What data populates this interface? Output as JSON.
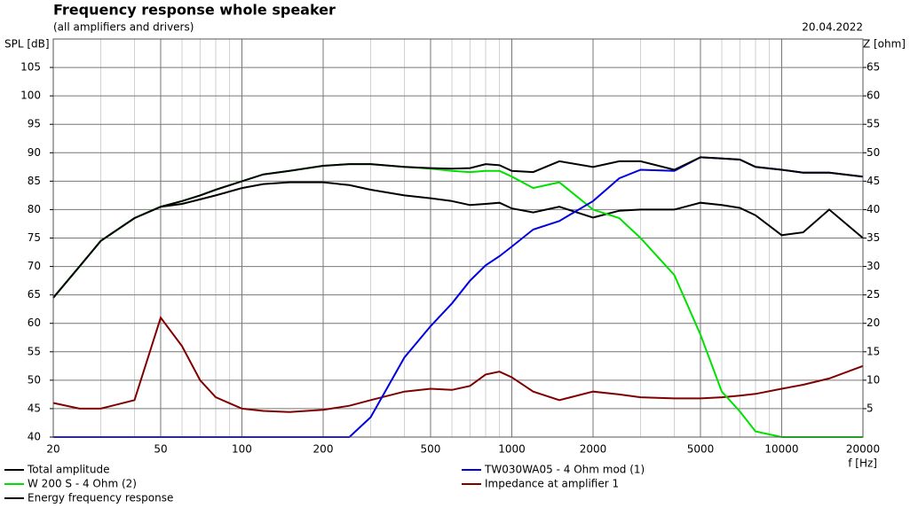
{
  "chart_data": {
    "type": "line",
    "title": "Frequency response whole speaker",
    "subtitle": "(all amplifiers and drivers)",
    "date": "20.04.2022",
    "y_label": "SPL [dB]",
    "y2_label": "Z [ohm]",
    "x_label": "f [Hz]",
    "x_log": true,
    "grid": true,
    "x": [
      20,
      25,
      30,
      40,
      50,
      60,
      70,
      80,
      100,
      120,
      150,
      200,
      250,
      300,
      400,
      500,
      600,
      700,
      800,
      900,
      1000,
      1200,
      1500,
      2000,
      2500,
      3000,
      4000,
      5000,
      6000,
      7000,
      8000,
      10000,
      12000,
      15000,
      20000
    ],
    "xlim": [
      20,
      20000
    ],
    "xticks": [
      20,
      50,
      100,
      200,
      500,
      1000,
      2000,
      5000,
      10000,
      20000
    ],
    "ylim": [
      40,
      110
    ],
    "yticks": [
      40,
      45,
      50,
      55,
      60,
      65,
      70,
      75,
      80,
      85,
      90,
      95,
      100,
      105
    ],
    "y2lim": [
      0,
      70
    ],
    "y2ticks": [
      5,
      10,
      15,
      20,
      25,
      30,
      35,
      40,
      45,
      50,
      55,
      60,
      65
    ],
    "series": [
      {
        "name": "Total amplitude",
        "color": "#000000",
        "values": [
          64.5,
          70,
          74.5,
          78.5,
          80.5,
          81.5,
          82.5,
          83.5,
          85,
          86.2,
          86.8,
          87.7,
          88,
          88,
          87.5,
          87.3,
          87.2,
          87.3,
          88,
          87.8,
          86.8,
          86.6,
          88.5,
          87.5,
          88.5,
          88.5,
          87,
          89.2,
          89,
          88.8,
          87.5,
          87,
          86.5,
          86.5,
          85.8
        ]
      },
      {
        "name": "W 200 S - 4 Ohm (2)",
        "color": "#00e000",
        "values": [
          64.5,
          70,
          74.5,
          78.5,
          80.5,
          81.5,
          82.5,
          83.5,
          85,
          86.2,
          86.8,
          87.7,
          88,
          88,
          87.5,
          87.2,
          86.8,
          86.6,
          86.8,
          86.8,
          85.8,
          83.8,
          84.8,
          80,
          78.5,
          75,
          68.5,
          58,
          48,
          44.5,
          41,
          40,
          40,
          40,
          40
        ]
      },
      {
        "name": "TW030WA05 - 4 Ohm mod (1)",
        "color": "#0000e0",
        "values": [
          40,
          40,
          40,
          40,
          40,
          40,
          40,
          40,
          40,
          40,
          40,
          40,
          40,
          43.5,
          54,
          59.5,
          63.5,
          67.5,
          70.2,
          71.8,
          73.5,
          76.5,
          78,
          81.5,
          85.5,
          87,
          86.8,
          89.2,
          89,
          88.8,
          87.5,
          87,
          86.5,
          86.5,
          85.8
        ]
      },
      {
        "name": "Impedance at amplifier 1",
        "color": "#800000",
        "axis": "y2",
        "values": [
          6,
          5,
          5,
          6.5,
          21,
          16,
          10,
          7,
          5,
          4.6,
          4.4,
          4.8,
          5.5,
          6.5,
          8,
          8.5,
          8.3,
          9,
          11,
          11.5,
          10.5,
          8,
          6.5,
          8,
          7.5,
          7,
          6.8,
          6.8,
          7,
          7.3,
          7.6,
          8.5,
          9.2,
          10.3,
          12.5
        ]
      },
      {
        "name": "Energy frequency response",
        "color": "#000000",
        "values": [
          64.5,
          70,
          74.5,
          78.5,
          80.5,
          81,
          81.8,
          82.5,
          83.8,
          84.5,
          84.8,
          84.8,
          84.3,
          83.5,
          82.5,
          82,
          81.5,
          80.8,
          81,
          81.2,
          80.2,
          79.5,
          80.5,
          78.6,
          79.8,
          80,
          80,
          81.2,
          80.8,
          80.3,
          79,
          75.5,
          76,
          80,
          75
        ]
      }
    ]
  }
}
